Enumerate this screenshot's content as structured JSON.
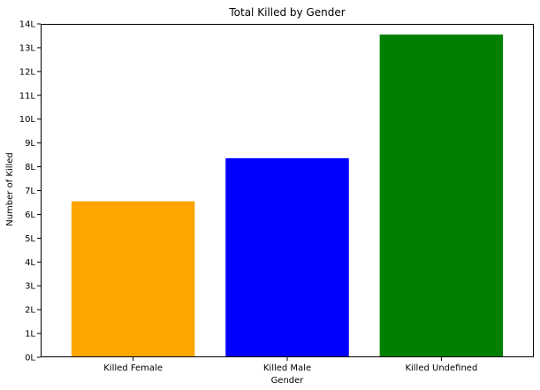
{
  "chart_data": {
    "type": "bar",
    "title": "Total Killed by Gender",
    "xlabel": "Gender",
    "ylabel": "Number of Killed",
    "categories": [
      "Killed Female",
      "Killed Male",
      "Killed Undefined"
    ],
    "values": [
      6.55,
      8.36,
      13.55
    ],
    "value_unit": "L",
    "colors": [
      "#FFA500",
      "#0000FF",
      "#008000"
    ],
    "ylim": [
      0,
      14
    ],
    "yticks": [
      0,
      1,
      2,
      3,
      4,
      5,
      6,
      7,
      8,
      9,
      10,
      11,
      12,
      13,
      14
    ],
    "ytick_labels": [
      "0L",
      "1L",
      "2L",
      "3L",
      "4L",
      "5L",
      "6L",
      "7L",
      "8L",
      "9L",
      "10L",
      "11L",
      "12L",
      "13L",
      "14L"
    ],
    "grid": false,
    "legend": "none"
  }
}
